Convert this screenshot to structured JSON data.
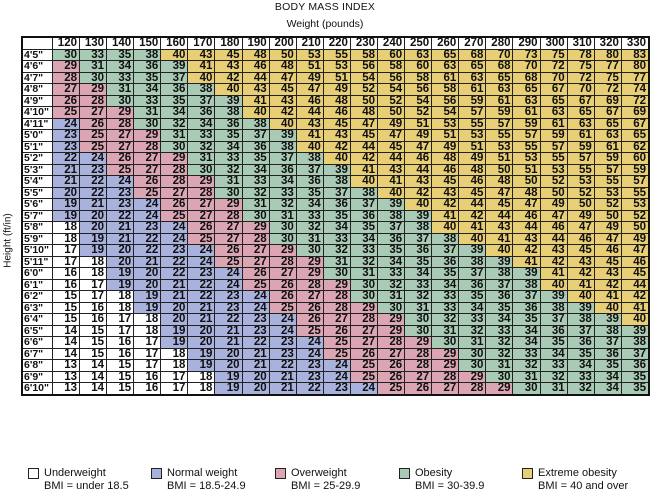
{
  "chart_data": {
    "type": "table",
    "title": "BODY MASS INDEX",
    "xlabel": "Weight (pounds)",
    "ylabel": "Height (ft/in)",
    "columns": [
      120,
      130,
      140,
      150,
      160,
      170,
      180,
      190,
      200,
      210,
      220,
      230,
      240,
      250,
      260,
      270,
      280,
      290,
      300,
      310,
      320,
      330
    ],
    "rows": [
      {
        "height": "4'5\"",
        "values": [
          30,
          33,
          35,
          38,
          40,
          43,
          45,
          48,
          50,
          53,
          55,
          58,
          60,
          63,
          65,
          68,
          70,
          73,
          75,
          78,
          80,
          83
        ]
      },
      {
        "height": "4'6\"",
        "values": [
          29,
          31,
          34,
          36,
          39,
          41,
          43,
          46,
          48,
          51,
          53,
          56,
          58,
          60,
          63,
          65,
          68,
          70,
          72,
          75,
          77,
          80
        ]
      },
      {
        "height": "4'7\"",
        "values": [
          28,
          30,
          33,
          35,
          37,
          40,
          42,
          44,
          47,
          49,
          51,
          54,
          56,
          58,
          61,
          63,
          65,
          68,
          70,
          72,
          75,
          77
        ]
      },
      {
        "height": "4'8\"",
        "values": [
          27,
          29,
          31,
          34,
          36,
          38,
          40,
          43,
          45,
          47,
          49,
          52,
          54,
          56,
          58,
          61,
          63,
          65,
          67,
          70,
          72,
          74
        ]
      },
      {
        "height": "4'9\"",
        "values": [
          26,
          28,
          30,
          33,
          35,
          37,
          39,
          41,
          43,
          46,
          48,
          50,
          52,
          54,
          56,
          59,
          61,
          63,
          65,
          67,
          69,
          72
        ]
      },
      {
        "height": "4'10\"",
        "values": [
          25,
          27,
          29,
          31,
          34,
          36,
          38,
          40,
          42,
          44,
          46,
          48,
          50,
          52,
          54,
          57,
          59,
          61,
          63,
          65,
          67,
          69
        ]
      },
      {
        "height": "4'11\"",
        "values": [
          24,
          26,
          28,
          30,
          32,
          34,
          36,
          38,
          40,
          43,
          45,
          47,
          49,
          51,
          53,
          55,
          57,
          59,
          61,
          63,
          65,
          67
        ]
      },
      {
        "height": "5'0\"",
        "values": [
          23,
          25,
          27,
          29,
          31,
          33,
          35,
          37,
          39,
          41,
          43,
          45,
          47,
          49,
          51,
          53,
          55,
          57,
          59,
          61,
          63,
          65
        ]
      },
      {
        "height": "5'1\"",
        "values": [
          23,
          25,
          27,
          28,
          30,
          32,
          34,
          36,
          38,
          40,
          42,
          44,
          45,
          47,
          49,
          51,
          53,
          55,
          57,
          59,
          61,
          62
        ]
      },
      {
        "height": "5'2\"",
        "values": [
          22,
          24,
          26,
          27,
          29,
          31,
          33,
          35,
          37,
          38,
          40,
          42,
          44,
          46,
          48,
          49,
          51,
          53,
          55,
          57,
          59,
          60
        ]
      },
      {
        "height": "5'3\"",
        "values": [
          21,
          23,
          25,
          27,
          28,
          30,
          32,
          34,
          36,
          37,
          39,
          41,
          43,
          44,
          46,
          48,
          50,
          51,
          53,
          55,
          57,
          59
        ]
      },
      {
        "height": "5'4\"",
        "values": [
          21,
          22,
          24,
          26,
          28,
          29,
          31,
          33,
          34,
          36,
          38,
          40,
          41,
          43,
          45,
          46,
          48,
          50,
          52,
          53,
          55,
          57
        ]
      },
      {
        "height": "5'5\"",
        "values": [
          20,
          22,
          23,
          25,
          27,
          28,
          30,
          32,
          33,
          35,
          37,
          38,
          40,
          42,
          43,
          45,
          47,
          48,
          50,
          52,
          53,
          55
        ]
      },
      {
        "height": "5'6\"",
        "values": [
          19,
          21,
          23,
          24,
          26,
          27,
          29,
          31,
          32,
          34,
          36,
          37,
          39,
          40,
          42,
          44,
          45,
          47,
          49,
          50,
          52,
          53
        ]
      },
      {
        "height": "5'7\"",
        "values": [
          19,
          20,
          22,
          24,
          25,
          27,
          28,
          30,
          31,
          33,
          35,
          36,
          38,
          39,
          41,
          42,
          44,
          46,
          47,
          49,
          50,
          52
        ]
      },
      {
        "height": "5'8\"",
        "values": [
          18,
          20,
          21,
          23,
          24,
          26,
          27,
          29,
          30,
          32,
          34,
          35,
          37,
          38,
          40,
          41,
          43,
          44,
          46,
          47,
          49,
          50
        ]
      },
      {
        "height": "5'9\"",
        "values": [
          18,
          19,
          21,
          22,
          24,
          25,
          27,
          28,
          30,
          31,
          33,
          34,
          36,
          37,
          38,
          40,
          41,
          43,
          44,
          46,
          47,
          49
        ]
      },
      {
        "height": "5'10\"",
        "values": [
          17,
          19,
          20,
          22,
          23,
          24,
          26,
          27,
          29,
          30,
          32,
          33,
          35,
          36,
          37,
          39,
          40,
          42,
          43,
          45,
          46,
          47
        ]
      },
      {
        "height": "5'11\"",
        "values": [
          17,
          18,
          20,
          21,
          22,
          24,
          25,
          27,
          28,
          29,
          31,
          32,
          34,
          35,
          36,
          38,
          39,
          41,
          42,
          43,
          45,
          46
        ]
      },
      {
        "height": "6'0\"",
        "values": [
          16,
          18,
          19,
          20,
          22,
          23,
          24,
          26,
          27,
          29,
          30,
          31,
          33,
          34,
          35,
          37,
          38,
          39,
          41,
          42,
          43,
          45
        ]
      },
      {
        "height": "6'1\"",
        "values": [
          16,
          17,
          19,
          20,
          21,
          22,
          24,
          25,
          26,
          28,
          29,
          30,
          32,
          33,
          34,
          36,
          37,
          38,
          40,
          41,
          42,
          44
        ]
      },
      {
        "height": "6'2\"",
        "values": [
          15,
          17,
          18,
          19,
          21,
          22,
          23,
          24,
          26,
          27,
          28,
          30,
          31,
          32,
          33,
          35,
          36,
          37,
          39,
          40,
          41,
          42
        ]
      },
      {
        "height": "6'3\"",
        "values": [
          15,
          16,
          18,
          19,
          20,
          21,
          23,
          24,
          25,
          26,
          28,
          29,
          30,
          31,
          33,
          34,
          35,
          36,
          38,
          39,
          40,
          41
        ]
      },
      {
        "height": "6'4\"",
        "values": [
          15,
          16,
          17,
          18,
          20,
          21,
          22,
          23,
          24,
          26,
          27,
          28,
          29,
          30,
          32,
          33,
          34,
          35,
          37,
          38,
          39,
          40
        ]
      },
      {
        "height": "6'5\"",
        "values": [
          14,
          15,
          17,
          18,
          19,
          20,
          21,
          23,
          24,
          25,
          26,
          27,
          29,
          30,
          31,
          32,
          33,
          34,
          36,
          37,
          38,
          39
        ]
      },
      {
        "height": "6'6\"",
        "values": [
          14,
          15,
          16,
          17,
          19,
          20,
          21,
          22,
          23,
          24,
          25,
          27,
          28,
          29,
          30,
          31,
          32,
          34,
          35,
          36,
          37,
          38
        ]
      },
      {
        "height": "6'7\"",
        "values": [
          14,
          15,
          16,
          17,
          18,
          19,
          20,
          21,
          23,
          24,
          25,
          26,
          27,
          28,
          29,
          30,
          32,
          33,
          34,
          35,
          36,
          37
        ]
      },
      {
        "height": "6'8\"",
        "values": [
          13,
          14,
          15,
          17,
          18,
          19,
          20,
          21,
          22,
          23,
          24,
          25,
          26,
          28,
          29,
          30,
          31,
          32,
          33,
          34,
          35,
          36
        ]
      },
      {
        "height": "6'9\"",
        "values": [
          13,
          14,
          15,
          16,
          17,
          18,
          19,
          20,
          21,
          23,
          24,
          25,
          26,
          27,
          28,
          29,
          30,
          31,
          32,
          33,
          34,
          35
        ]
      },
      {
        "height": "6'10\"",
        "values": [
          13,
          14,
          15,
          16,
          17,
          18,
          19,
          20,
          21,
          22,
          23,
          24,
          25,
          26,
          27,
          28,
          29,
          30,
          31,
          32,
          34,
          35
        ]
      }
    ],
    "legend": [
      {
        "key": "u",
        "label": "Underweight",
        "range": "BMI = under 18.5",
        "color": "#ffffff",
        "min": 0,
        "max": 18.5
      },
      {
        "key": "n",
        "label": "Normal weight",
        "range": "BMI = 18.5-24.9",
        "color": "#a9b1dd",
        "min": 18.5,
        "max": 25
      },
      {
        "key": "o",
        "label": "Overweight",
        "range": "BMI = 25-29.9",
        "color": "#dba5b3",
        "min": 25,
        "max": 30
      },
      {
        "key": "ob",
        "label": "Obesity",
        "range": "BMI = 30-39.9",
        "color": "#a9cbb5",
        "min": 30,
        "max": 40
      },
      {
        "key": "x",
        "label": "Extreme obesity",
        "range": "BMI = 40 and over",
        "color": "#e8cf75",
        "min": 40,
        "max": 1000
      }
    ],
    "legend_position": "bottom"
  }
}
